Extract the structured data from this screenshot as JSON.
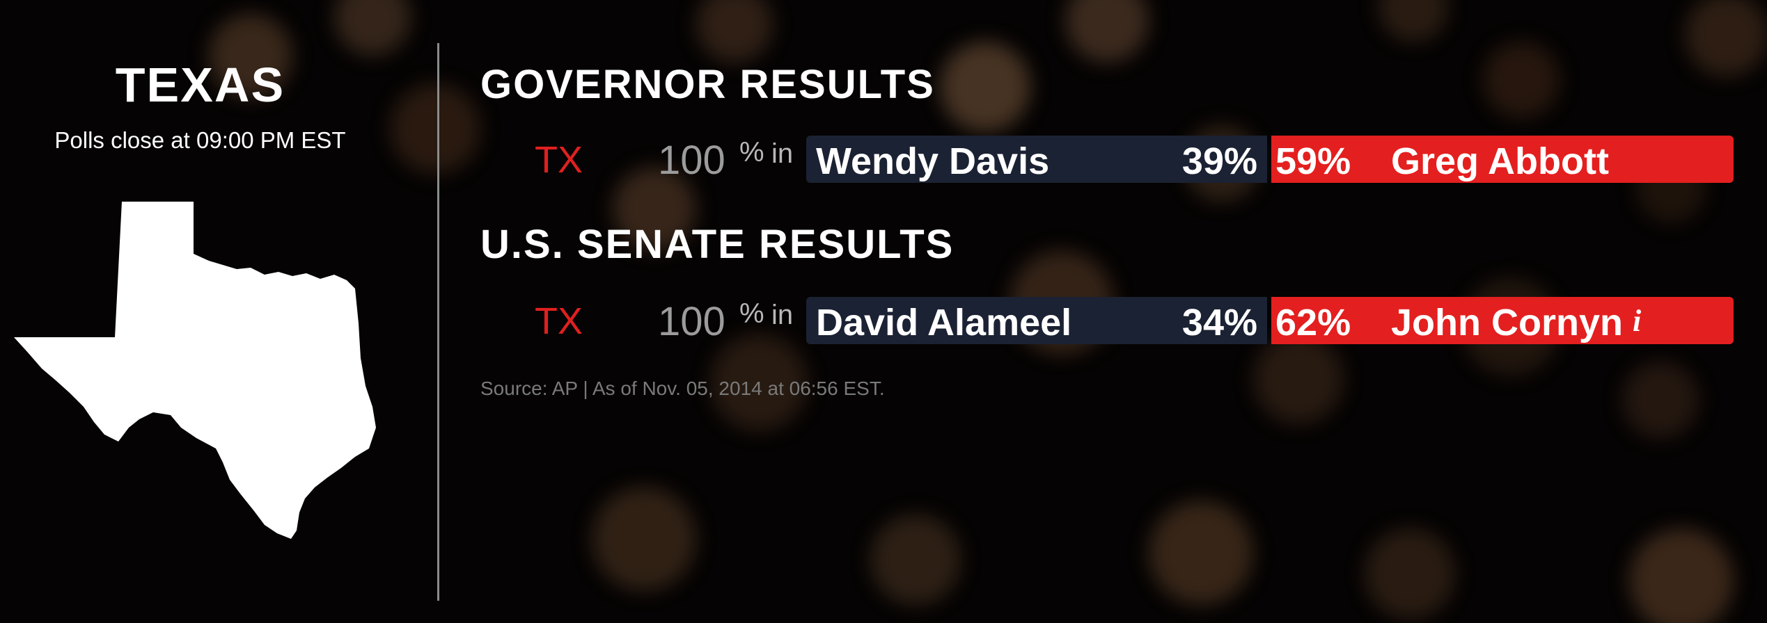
{
  "state": {
    "name": "TEXAS",
    "polls_close": "Polls close at 09:00 PM EST"
  },
  "races": [
    {
      "title": "GOVERNOR RESULTS",
      "state_abbr": "TX",
      "reporting_pct": "100",
      "pct_sign": "%",
      "in_label": "in",
      "democrat": {
        "name": "Wendy Davis",
        "pct": "39%"
      },
      "republican": {
        "name": "Greg Abbott",
        "pct": "59%",
        "incumbent": false
      }
    },
    {
      "title": "U.S. SENATE RESULTS",
      "state_abbr": "TX",
      "reporting_pct": "100",
      "pct_sign": "%",
      "in_label": "in",
      "democrat": {
        "name": "David Alameel",
        "pct": "34%"
      },
      "republican": {
        "name": "John Cornyn",
        "pct": "62%",
        "incumbent": true
      }
    }
  ],
  "incumbent_icon": "i",
  "source_line": "Source: AP  |  As of Nov. 05, 2014 at 06:56 EST.",
  "colors": {
    "republican": "#e41f1f",
    "democrat": "#1b2233",
    "state_abbr": "#e02020"
  }
}
